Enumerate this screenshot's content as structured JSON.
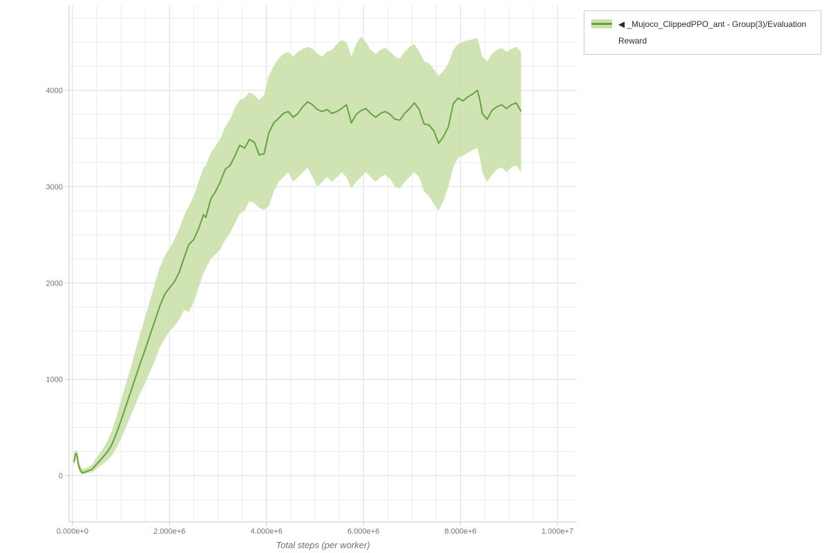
{
  "page": {
    "background": "#ffffff"
  },
  "legend": {
    "position": "top-right",
    "entries": [
      {
        "label": "◀ _Mujoco_ClippedPPO_ant - Group(3)/Evaluation Reward",
        "line_color": "#63a33f",
        "band_color": "#cbe0ab"
      }
    ]
  },
  "chart_data": {
    "type": "line",
    "title": "",
    "xlabel": "Total steps (per worker)",
    "ylabel": "",
    "x_domain": [
      -70000,
      10400000
    ],
    "y_domain": [
      -480,
      4880
    ],
    "grid": {
      "on": true,
      "x_step": 500000,
      "y_step": 250,
      "minor_color": "#ebebeb",
      "major_color": "#e0e0e0"
    },
    "axis_color": "#c8c8c8",
    "tick_label_color": "#707070",
    "x_ticks": [
      {
        "v": 0,
        "label": "0.000e+0"
      },
      {
        "v": 2000000,
        "label": "2.000e+6"
      },
      {
        "v": 4000000,
        "label": "4.000e+6"
      },
      {
        "v": 6000000,
        "label": "6.000e+6"
      },
      {
        "v": 8000000,
        "label": "8.000e+6"
      },
      {
        "v": 10000000,
        "label": "1.000e+7"
      }
    ],
    "y_ticks": [
      {
        "v": 0,
        "label": "0"
      },
      {
        "v": 1000,
        "label": "1000"
      },
      {
        "v": 2000,
        "label": "2000"
      },
      {
        "v": 3000,
        "label": "3000"
      },
      {
        "v": 4000,
        "label": "4000"
      }
    ],
    "series": [
      {
        "name": "_Mujoco_ClippedPPO_ant - Group(3)/Evaluation Reward",
        "line_color": "#63a33f",
        "band_color": "#cbe0ab",
        "x": [
          30000,
          60000,
          90000,
          120000,
          160000,
          200000,
          250000,
          300000,
          400000,
          500000,
          600000,
          700000,
          800000,
          900000,
          1000000,
          1100000,
          1200000,
          1300000,
          1400000,
          1500000,
          1600000,
          1700000,
          1800000,
          1900000,
          2000000,
          2100000,
          2200000,
          2300000,
          2400000,
          2500000,
          2600000,
          2700000,
          2750000,
          2850000,
          2950000,
          3050000,
          3150000,
          3250000,
          3350000,
          3450000,
          3550000,
          3650000,
          3750000,
          3850000,
          3950000,
          4050000,
          4150000,
          4250000,
          4350000,
          4450000,
          4550000,
          4650000,
          4750000,
          4850000,
          4950000,
          5050000,
          5150000,
          5250000,
          5350000,
          5450000,
          5550000,
          5650000,
          5750000,
          5850000,
          5950000,
          6050000,
          6150000,
          6250000,
          6350000,
          6450000,
          6550000,
          6650000,
          6750000,
          6850000,
          6950000,
          7050000,
          7150000,
          7250000,
          7350000,
          7450000,
          7550000,
          7650000,
          7750000,
          7850000,
          7950000,
          8050000,
          8150000,
          8250000,
          8350000,
          8400000,
          8450000,
          8550000,
          8650000,
          8750000,
          8850000,
          8950000,
          9050000,
          9150000,
          9250000
        ],
        "mean": [
          140,
          220,
          230,
          120,
          60,
          30,
          35,
          45,
          65,
          120,
          175,
          235,
          310,
          430,
          570,
          720,
          870,
          1020,
          1170,
          1310,
          1460,
          1610,
          1760,
          1880,
          1950,
          2010,
          2110,
          2260,
          2400,
          2450,
          2560,
          2710,
          2680,
          2870,
          2950,
          3050,
          3180,
          3220,
          3320,
          3430,
          3400,
          3490,
          3460,
          3330,
          3340,
          3560,
          3660,
          3710,
          3760,
          3780,
          3720,
          3760,
          3830,
          3880,
          3850,
          3800,
          3780,
          3800,
          3760,
          3780,
          3810,
          3850,
          3660,
          3750,
          3790,
          3810,
          3760,
          3720,
          3760,
          3780,
          3750,
          3700,
          3690,
          3760,
          3810,
          3870,
          3800,
          3650,
          3640,
          3580,
          3450,
          3520,
          3620,
          3860,
          3920,
          3890,
          3930,
          3960,
          4000,
          3900,
          3760,
          3700,
          3790,
          3830,
          3850,
          3810,
          3850,
          3870,
          3780
        ],
        "lower": [
          100,
          160,
          170,
          70,
          25,
          15,
          18,
          25,
          35,
          70,
          110,
          150,
          200,
          280,
          380,
          500,
          620,
          740,
          860,
          960,
          1080,
          1200,
          1330,
          1420,
          1500,
          1550,
          1620,
          1720,
          1700,
          1800,
          1950,
          2100,
          2150,
          2250,
          2300,
          2350,
          2450,
          2520,
          2620,
          2720,
          2750,
          2850,
          2830,
          2780,
          2760,
          2800,
          2950,
          3050,
          3100,
          3150,
          3050,
          3100,
          3150,
          3200,
          3100,
          3000,
          3050,
          3100,
          3050,
          3100,
          3150,
          3100,
          2980,
          3050,
          3100,
          3150,
          3100,
          3050,
          3100,
          3120,
          3080,
          3000,
          2980,
          3050,
          3100,
          3150,
          3100,
          2950,
          2900,
          2820,
          2750,
          2850,
          3000,
          3200,
          3300,
          3320,
          3350,
          3380,
          3400,
          3300,
          3150,
          3050,
          3120,
          3180,
          3200,
          3150,
          3200,
          3220,
          3150
        ],
        "upper": [
          240,
          260,
          270,
          180,
          110,
          70,
          75,
          85,
          110,
          190,
          260,
          340,
          450,
          600,
          780,
          950,
          1120,
          1300,
          1480,
          1650,
          1820,
          2000,
          2160,
          2280,
          2360,
          2450,
          2560,
          2700,
          2800,
          2900,
          3050,
          3200,
          3220,
          3350,
          3420,
          3500,
          3620,
          3700,
          3820,
          3900,
          3920,
          3980,
          3950,
          3900,
          3950,
          4150,
          4250,
          4330,
          4380,
          4400,
          4350,
          4400,
          4430,
          4450,
          4430,
          4380,
          4350,
          4400,
          4420,
          4480,
          4520,
          4500,
          4350,
          4480,
          4560,
          4500,
          4420,
          4380,
          4420,
          4440,
          4400,
          4350,
          4330,
          4400,
          4450,
          4480,
          4400,
          4300,
          4280,
          4220,
          4150,
          4200,
          4280,
          4420,
          4480,
          4500,
          4520,
          4530,
          4540,
          4450,
          4350,
          4300,
          4380,
          4420,
          4440,
          4400,
          4430,
          4450,
          4400
        ]
      }
    ]
  }
}
